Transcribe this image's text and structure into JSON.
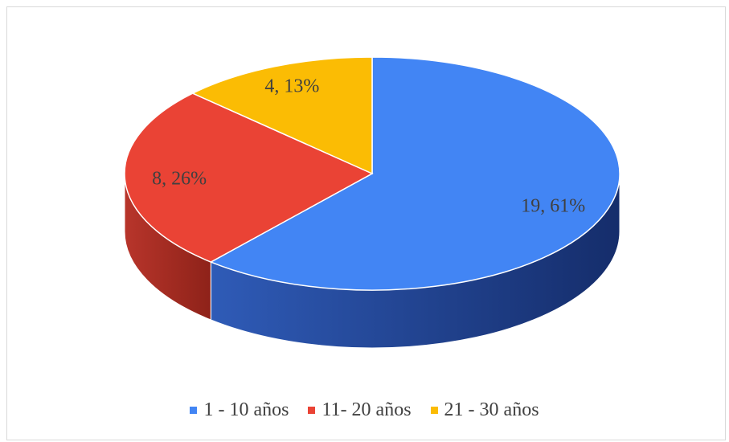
{
  "chart_data": {
    "type": "pie",
    "title": "",
    "slices": [
      {
        "name": "1 - 10 años",
        "value": 19,
        "percent": 61,
        "label": "19, 61%",
        "color": "#4285f4",
        "side_color": "#2f5bb7",
        "side_dark": "#152d6b"
      },
      {
        "name": "11- 20 años",
        "value": 8,
        "percent": 26,
        "label": "8, 26%",
        "color": "#ea4335",
        "side_color": "#b8352b",
        "side_dark": "#8e2219"
      },
      {
        "name": "21 - 30 años",
        "value": 4,
        "percent": 13,
        "label": "4, 13%",
        "color": "#fbbc04",
        "side_color": "#c59200",
        "side_dark": "#8a6800"
      }
    ],
    "legend_position": "bottom",
    "style": "3d-pie"
  }
}
